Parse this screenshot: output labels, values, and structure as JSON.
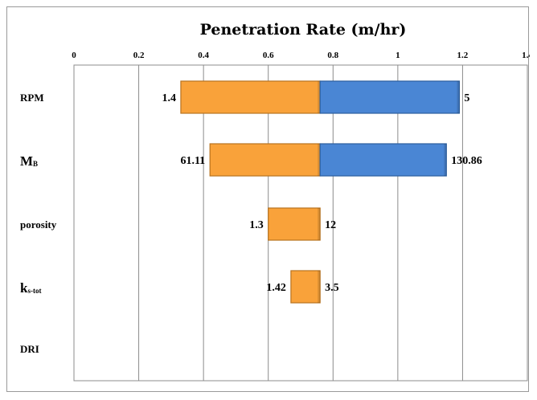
{
  "chart_data": {
    "type": "bar",
    "orientation": "horizontal",
    "style": "tornado",
    "title": "Penetration Rate (m/hr)",
    "x_axis_position": "top",
    "xlim": [
      0,
      1.4
    ],
    "xticks": [
      "0",
      "0.2",
      "0.4",
      "0.6",
      "0.8",
      "1",
      "1.2",
      "1.4"
    ],
    "xtick_values": [
      0,
      0.2,
      0.4,
      0.6,
      0.8,
      1.0,
      1.2,
      1.4
    ],
    "grid": true,
    "base_value": 0.76,
    "categories": [
      {
        "label": "RPM",
        "subscript": ""
      },
      {
        "label": "M",
        "subscript": "B"
      },
      {
        "label": "porosity",
        "subscript": ""
      },
      {
        "label": "k",
        "subscript": "s-tot"
      },
      {
        "label": "DRI",
        "subscript": ""
      }
    ],
    "series": [
      {
        "color": "#F9A23A",
        "low": [
          0.33,
          0.42,
          0.6,
          0.67,
          null
        ],
        "high": [
          0.76,
          0.76,
          0.76,
          0.76,
          null
        ]
      },
      {
        "color": "#4A86D4",
        "low": [
          0.76,
          0.76,
          null,
          null,
          null
        ],
        "high": [
          1.19,
          1.15,
          null,
          null,
          null
        ]
      }
    ],
    "data_labels": [
      {
        "left": "1.4",
        "right": "5"
      },
      {
        "left": "61.11",
        "right": "130.86"
      },
      {
        "left": "1.3",
        "right": "12"
      },
      {
        "left": "1.42",
        "right": "3.5"
      },
      {
        "left": "",
        "right": ""
      }
    ]
  }
}
